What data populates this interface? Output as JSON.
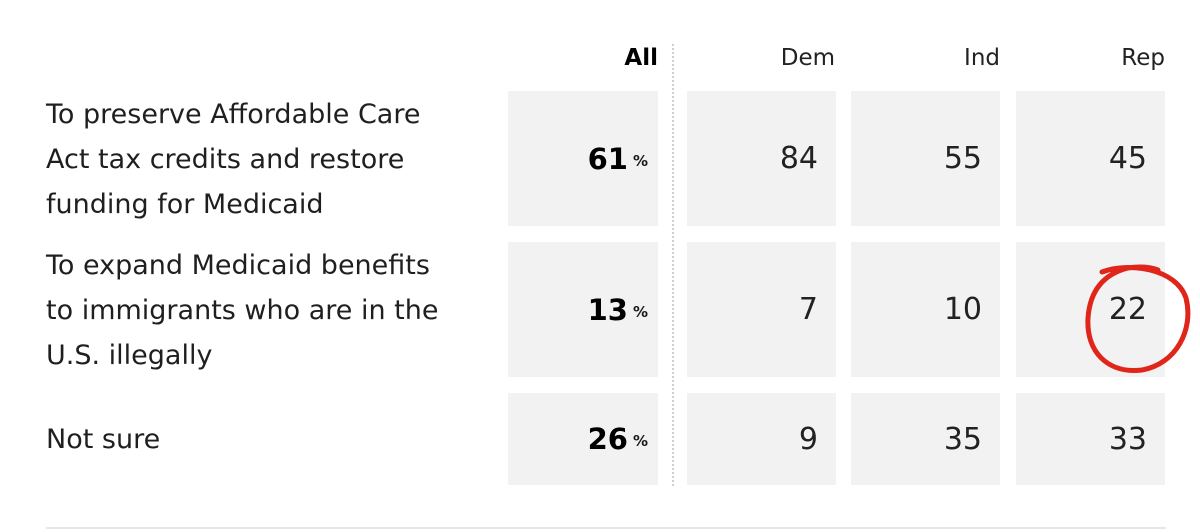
{
  "chart_data": {
    "type": "table",
    "columns": [
      "All",
      "Dem",
      "Ind",
      "Rep"
    ],
    "percent_symbol": "%",
    "rows": [
      {
        "label_lines": [
          "To preserve Affordable Care",
          "Act tax credits and restore",
          "funding for Medicaid"
        ],
        "all": "61",
        "dem": "84",
        "ind": "55",
        "rep": "45"
      },
      {
        "label_lines": [
          "To expand Medicaid benefits",
          "to immigrants who are in the",
          "U.S. illegally"
        ],
        "all": "13",
        "dem": "7",
        "ind": "10",
        "rep": "22"
      },
      {
        "label_lines": [
          "Not sure"
        ],
        "all": "26",
        "dem": "9",
        "ind": "35",
        "rep": "33"
      }
    ],
    "highlight": {
      "row": 1,
      "column": "Rep",
      "color": "#e0261b"
    }
  }
}
